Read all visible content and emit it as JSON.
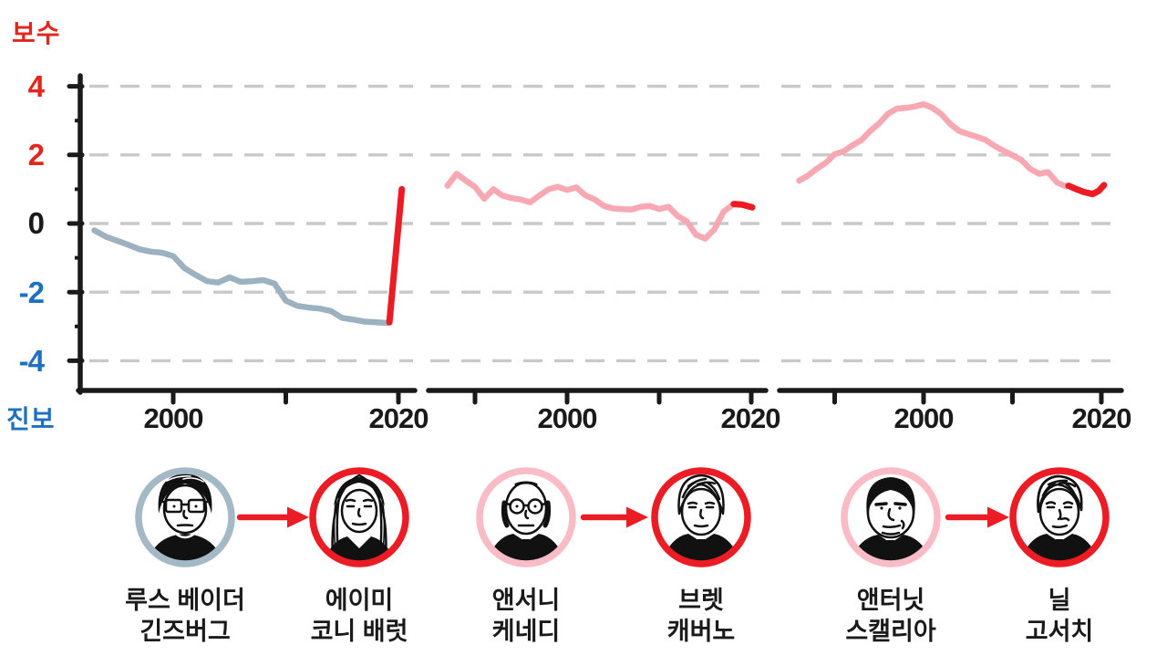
{
  "y_axis": {
    "top_label": {
      "text": "보수",
      "color": "#e4251c"
    },
    "bottom_label": {
      "text": "진보",
      "color": "#1e70c1"
    },
    "ticks": [
      {
        "value": 4,
        "label": "4",
        "color": "#e4251c"
      },
      {
        "value": 2,
        "label": "2",
        "color": "#e4251c"
      },
      {
        "value": 0,
        "label": "0",
        "color": "#1a1a1a"
      },
      {
        "value": -2,
        "label": "-2",
        "color": "#1e70c1"
      },
      {
        "value": -4,
        "label": "-4",
        "color": "#1e70c1"
      }
    ],
    "minor_tick_values": [
      3,
      1,
      -1,
      -3
    ]
  },
  "chart_data": {
    "type": "line",
    "title": "",
    "ylabel_top": "보수",
    "ylabel_bottom": "진보",
    "ylim": [
      -4.9,
      4.6
    ],
    "grid": "dashed horizontal at 4, 2, 0, -2, -4",
    "grid_values": [
      4,
      2,
      0,
      -2,
      -4
    ],
    "panels": [
      {
        "id": "ginsburg-to-barrett",
        "x_ticks": [
          {
            "year": 2000,
            "label": "2000"
          },
          {
            "year": 2010,
            "label": ""
          },
          {
            "year": 2020,
            "label": "2020"
          }
        ],
        "series": [
          {
            "name": "루스 베이더 긴즈버그",
            "role": "old",
            "color": "#9cb2c1",
            "points": [
              [
                1993,
                -0.2
              ],
              [
                1994,
                -0.38
              ],
              [
                1995,
                -0.5
              ],
              [
                1996,
                -0.62
              ],
              [
                1997,
                -0.75
              ],
              [
                1998,
                -0.82
              ],
              [
                1999,
                -0.85
              ],
              [
                2000,
                -0.95
              ],
              [
                2001,
                -1.3
              ],
              [
                2002,
                -1.5
              ],
              [
                2003,
                -1.68
              ],
              [
                2004,
                -1.72
              ],
              [
                2005,
                -1.57
              ],
              [
                2006,
                -1.7
              ],
              [
                2007,
                -1.68
              ],
              [
                2008,
                -1.65
              ],
              [
                2009,
                -1.75
              ],
              [
                2010,
                -2.25
              ],
              [
                2011,
                -2.4
              ],
              [
                2012,
                -2.45
              ],
              [
                2013,
                -2.48
              ],
              [
                2014,
                -2.55
              ],
              [
                2015,
                -2.75
              ],
              [
                2016,
                -2.8
              ],
              [
                2017,
                -2.86
              ],
              [
                2018,
                -2.88
              ],
              [
                2019,
                -2.9
              ]
            ]
          },
          {
            "name": "에이미 코니 배럿",
            "role": "new",
            "color": "#ec1c24",
            "points": [
              [
                2019.2,
                -2.88
              ],
              [
                2020.3,
                1.0
              ]
            ]
          }
        ]
      },
      {
        "id": "kennedy-to-kavanaugh",
        "x_ticks": [
          {
            "year": 1990,
            "label": ""
          },
          {
            "year": 2000,
            "label": "2000"
          },
          {
            "year": 2010,
            "label": ""
          },
          {
            "year": 2020,
            "label": "2020"
          }
        ],
        "series": [
          {
            "name": "앤서니 케네디",
            "role": "old",
            "color": "#f8a8b2",
            "points": [
              [
                1987,
                1.1
              ],
              [
                1988,
                1.45
              ],
              [
                1989,
                1.25
              ],
              [
                1990,
                1.07
              ],
              [
                1991,
                0.72
              ],
              [
                1992,
                1.0
              ],
              [
                1993,
                0.81
              ],
              [
                1994,
                0.74
              ],
              [
                1995,
                0.7
              ],
              [
                1996,
                0.62
              ],
              [
                1997,
                0.82
              ],
              [
                1998,
                1.0
              ],
              [
                1999,
                1.07
              ],
              [
                2000,
                0.98
              ],
              [
                2001,
                1.05
              ],
              [
                2002,
                0.82
              ],
              [
                2003,
                0.7
              ],
              [
                2004,
                0.51
              ],
              [
                2005,
                0.44
              ],
              [
                2006,
                0.42
              ],
              [
                2007,
                0.41
              ],
              [
                2008,
                0.49
              ],
              [
                2009,
                0.51
              ],
              [
                2010,
                0.42
              ],
              [
                2011,
                0.49
              ],
              [
                2012,
                0.22
              ],
              [
                2013,
                0.06
              ],
              [
                2014,
                -0.33
              ],
              [
                2015,
                -0.44
              ],
              [
                2016,
                -0.17
              ],
              [
                2017,
                0.35
              ],
              [
                2018,
                0.55
              ]
            ]
          },
          {
            "name": "브렛 캐버노",
            "role": "new",
            "color": "#ec1c24",
            "points": [
              [
                2018.1,
                0.57
              ],
              [
                2019,
                0.55
              ],
              [
                2020.1,
                0.47
              ]
            ]
          }
        ]
      },
      {
        "id": "scalia-to-gorsuch",
        "x_ticks": [
          {
            "year": 1990,
            "label": ""
          },
          {
            "year": 2000,
            "label": "2000"
          },
          {
            "year": 2010,
            "label": ""
          },
          {
            "year": 2020,
            "label": "2020"
          }
        ],
        "series": [
          {
            "name": "앤터닛 스캘리아",
            "role": "old",
            "color": "#f8a8b2",
            "points": [
              [
                1986,
                1.25
              ],
              [
                1987,
                1.4
              ],
              [
                1988,
                1.6
              ],
              [
                1989,
                1.77
              ],
              [
                1990,
                2.02
              ],
              [
                1991,
                2.1
              ],
              [
                1992,
                2.28
              ],
              [
                1993,
                2.43
              ],
              [
                1994,
                2.7
              ],
              [
                1995,
                2.92
              ],
              [
                1996,
                3.2
              ],
              [
                1997,
                3.35
              ],
              [
                1998,
                3.37
              ],
              [
                1999,
                3.41
              ],
              [
                2000,
                3.48
              ],
              [
                2001,
                3.37
              ],
              [
                2002,
                3.19
              ],
              [
                2003,
                2.9
              ],
              [
                2004,
                2.7
              ],
              [
                2005,
                2.61
              ],
              [
                2006,
                2.53
              ],
              [
                2007,
                2.43
              ],
              [
                2008,
                2.26
              ],
              [
                2009,
                2.12
              ],
              [
                2010,
                1.99
              ],
              [
                2011,
                1.85
              ],
              [
                2012,
                1.59
              ],
              [
                2013,
                1.45
              ],
              [
                2014,
                1.5
              ],
              [
                2015,
                1.2
              ],
              [
                2016,
                1.08
              ]
            ]
          },
          {
            "name": "닐 고서치",
            "role": "new",
            "color": "#ec1c24",
            "points": [
              [
                2016.3,
                1.1
              ],
              [
                2017,
                1.02
              ],
              [
                2018,
                0.92
              ],
              [
                2019,
                0.86
              ],
              [
                2019.7,
                0.95
              ],
              [
                2020.3,
                1.12
              ]
            ]
          }
        ]
      }
    ]
  },
  "pairs": [
    {
      "arrow_color": "#ec1c24",
      "old": {
        "name_lines": [
          "루스 베이더",
          "긴즈버그"
        ],
        "ring_color": "#a3b9c6"
      },
      "new": {
        "name_lines": [
          "에이미",
          "코니 배럿"
        ],
        "ring_color": "#ec1c24"
      }
    },
    {
      "arrow_color": "#ec1c24",
      "old": {
        "name_lines": [
          "앤서니",
          "케네디"
        ],
        "ring_color": "#f9bcc7"
      },
      "new": {
        "name_lines": [
          "브렛",
          "캐버노"
        ],
        "ring_color": "#ec1c24"
      }
    },
    {
      "arrow_color": "#ec1c24",
      "old": {
        "name_lines": [
          "앤터닛",
          "스캘리아"
        ],
        "ring_color": "#f9bcc7"
      },
      "new": {
        "name_lines": [
          "닐",
          "고서치"
        ],
        "ring_color": "#ec1c24"
      }
    }
  ]
}
